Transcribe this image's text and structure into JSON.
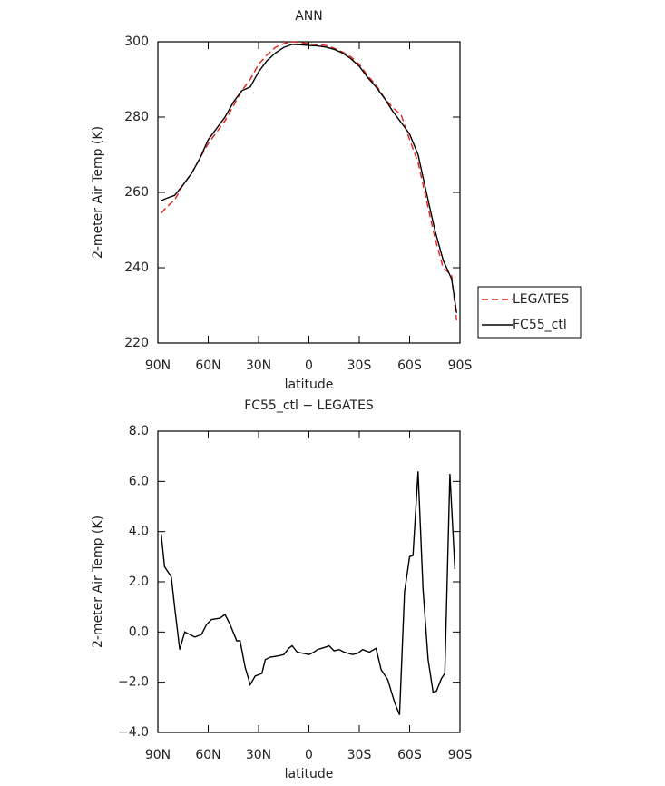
{
  "chart_data": [
    {
      "type": "line",
      "title": "ANN",
      "xlabel": "latitude",
      "ylabel": "2-meter Air Temp (K)",
      "x": [
        88,
        85,
        80,
        75,
        70,
        65,
        60,
        55,
        50,
        45,
        40,
        35,
        30,
        25,
        20,
        15,
        10,
        5,
        0,
        -5,
        -10,
        -15,
        -20,
        -25,
        -30,
        -35,
        -40,
        -45,
        -50,
        -55,
        -60,
        -65,
        -70,
        -75,
        -80,
        -85,
        -88
      ],
      "series": [
        {
          "name": "LEGATES",
          "color": "#e0201b",
          "line_style": "dashed",
          "values": [
            254.5,
            256,
            258,
            262,
            265,
            269,
            273,
            276,
            279,
            283,
            287,
            290,
            294,
            296.5,
            298.5,
            299.5,
            300,
            299.8,
            299.5,
            299.2,
            299,
            298.3,
            297.3,
            296,
            294,
            291,
            288.5,
            285,
            282.5,
            280.5,
            274,
            268,
            258,
            248,
            240,
            238,
            226
          ]
        },
        {
          "name": "FC55_ctl",
          "color": "#000000",
          "line_style": "solid",
          "values": [
            257.8,
            258.4,
            259.2,
            262,
            265,
            269,
            274,
            277,
            280,
            284,
            287,
            288,
            292,
            295,
            297,
            298.5,
            299.3,
            299.2,
            299,
            298.9,
            298.6,
            298,
            297,
            295.5,
            293.5,
            290.5,
            288,
            285,
            281.5,
            278.5,
            275.5,
            270,
            260,
            250,
            242,
            237,
            228
          ]
        }
      ],
      "xlim": [
        90,
        -90
      ],
      "xticks": [
        {
          "value": 90,
          "label": "90N"
        },
        {
          "value": 60,
          "label": "60N"
        },
        {
          "value": 30,
          "label": "30N"
        },
        0,
        {
          "value": -30,
          "label": "30S"
        },
        {
          "value": -60,
          "label": "60S"
        },
        {
          "value": -90,
          "label": "90S"
        }
      ],
      "ylim": [
        220,
        300
      ],
      "yticks": [
        220,
        240,
        260,
        280,
        300
      ],
      "legend": "right"
    },
    {
      "type": "line",
      "title": "FC55_ctl − LEGATES",
      "xlabel": "latitude",
      "ylabel": "2-meter Air Temp (K)",
      "x": [
        88,
        86,
        82,
        80,
        77,
        74,
        71,
        68,
        64,
        61,
        58,
        53,
        50,
        47,
        43,
        41,
        38,
        35,
        32,
        28,
        26,
        23,
        18,
        15,
        12,
        10,
        7,
        3,
        0,
        -3,
        -5,
        -10,
        -12,
        -15,
        -18,
        -21,
        -26,
        -29,
        -32,
        -36,
        -40,
        -43,
        -47,
        -51,
        -54,
        -57,
        -60,
        -62,
        -65,
        -68,
        -71,
        -74,
        -76,
        -79,
        -81,
        -84,
        -87
      ],
      "series": [
        {
          "name": "FC55_ctl − LEGATES",
          "color": "#000000",
          "line_style": "solid",
          "values": [
            3.9,
            2.6,
            2.2,
            1.0,
            -0.7,
            0,
            -0.1,
            -0.2,
            -0.1,
            0.3,
            0.5,
            0.55,
            0.7,
            0.3,
            -0.35,
            -0.35,
            -1.4,
            -2.1,
            -1.75,
            -1.65,
            -1.1,
            -1.0,
            -0.95,
            -0.9,
            -0.65,
            -0.55,
            -0.8,
            -0.85,
            -0.9,
            -0.8,
            -0.7,
            -0.6,
            -0.55,
            -0.75,
            -0.7,
            -0.8,
            -0.9,
            -0.85,
            -0.7,
            -0.8,
            -0.65,
            -1.5,
            -1.9,
            -2.8,
            -3.3,
            1.6,
            3.0,
            3.05,
            6.4,
            1.7,
            -1.1,
            -2.4,
            -2.35,
            -1.85,
            -1.65,
            6.3,
            2.5
          ]
        }
      ],
      "xlim": [
        90,
        -90
      ],
      "xticks": [
        {
          "value": 90,
          "label": "90N"
        },
        {
          "value": 60,
          "label": "60N"
        },
        {
          "value": 30,
          "label": "30N"
        },
        0,
        {
          "value": -30,
          "label": "30S"
        },
        {
          "value": -60,
          "label": "60S"
        },
        {
          "value": -90,
          "label": "90S"
        }
      ],
      "ylim": [
        -4,
        8
      ],
      "yticks": [
        {
          "value": -4,
          "label": "−4.0"
        },
        {
          "value": -2,
          "label": "−2.0"
        },
        {
          "value": 0,
          "label": "0.0"
        },
        {
          "value": 2,
          "label": "2.0"
        },
        {
          "value": 4,
          "label": "4.0"
        },
        {
          "value": 6,
          "label": "6.0"
        },
        {
          "value": 8,
          "label": "8.0"
        }
      ]
    }
  ]
}
